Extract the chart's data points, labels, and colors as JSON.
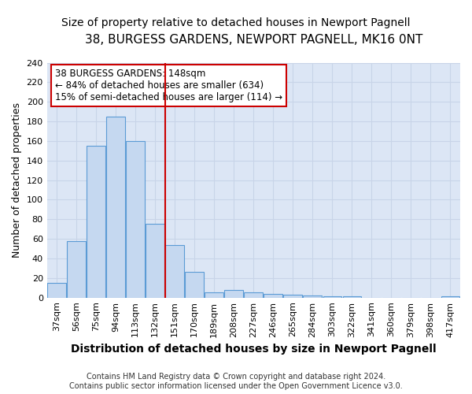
{
  "title1": "38, BURGESS GARDENS, NEWPORT PAGNELL, MK16 0NT",
  "title2": "Size of property relative to detached houses in Newport Pagnell",
  "xlabel": "Distribution of detached houses by size in Newport Pagnell",
  "ylabel": "Number of detached properties",
  "categories": [
    "37sqm",
    "56sqm",
    "75sqm",
    "94sqm",
    "113sqm",
    "132sqm",
    "151sqm",
    "170sqm",
    "189sqm",
    "208sqm",
    "227sqm",
    "246sqm",
    "265sqm",
    "284sqm",
    "303sqm",
    "322sqm",
    "341sqm",
    "360sqm",
    "379sqm",
    "398sqm",
    "417sqm"
  ],
  "values": [
    15,
    58,
    155,
    185,
    160,
    75,
    54,
    26,
    5,
    8,
    5,
    4,
    3,
    2,
    1,
    1,
    0,
    0,
    0,
    0,
    1
  ],
  "bar_color": "#c5d8f0",
  "bar_edgecolor": "#5b9bd5",
  "vline_idx": 6,
  "annotation_line1": "38 BURGESS GARDENS: 148sqm",
  "annotation_line2": "← 84% of detached houses are smaller (634)",
  "annotation_line3": "15% of semi-detached houses are larger (114) →",
  "annotation_box_color": "#cc0000",
  "footer1": "Contains HM Land Registry data © Crown copyright and database right 2024.",
  "footer2": "Contains public sector information licensed under the Open Government Licence v3.0.",
  "ylim": [
    0,
    240
  ],
  "yticks": [
    0,
    20,
    40,
    60,
    80,
    100,
    120,
    140,
    160,
    180,
    200,
    220,
    240
  ],
  "grid_color": "#c8d4e8",
  "background_color": "#dce6f5",
  "fig_background": "#ffffff",
  "title_fontsize": 11,
  "subtitle_fontsize": 10,
  "tick_fontsize": 8,
  "ylabel_fontsize": 9,
  "xlabel_fontsize": 10
}
